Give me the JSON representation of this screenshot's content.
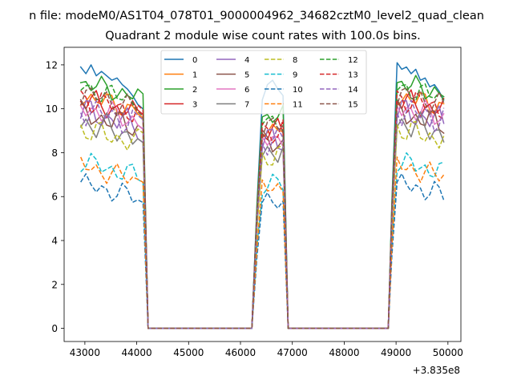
{
  "window": {
    "title_line": "n file: modeM0/AS1T04_078T01_9000004962_34682cztM0_level2_quad_clean"
  },
  "chart_data": {
    "type": "line",
    "title": "Quadrant 2 module wise count rates with 100.0s bins.",
    "xlabel": "",
    "ylabel": "",
    "xlim": [
      42600,
      50250
    ],
    "ylim": [
      -0.6,
      12.8
    ],
    "x_ticks": [
      43000,
      44000,
      45000,
      46000,
      47000,
      48000,
      49000,
      50000
    ],
    "y_ticks": [
      0,
      2,
      4,
      6,
      8,
      10,
      12
    ],
    "offset_text": "+3.835e8",
    "grid": false,
    "legend": {
      "placement": "top-center",
      "columns": 4
    },
    "segments": [
      {
        "x0": 42920,
        "x1": 44020
      },
      {
        "x0": 46420,
        "x1": 46820
      },
      {
        "x0": 48920,
        "x1": 49920
      }
    ],
    "zero_x": [
      44220,
      44320,
      44520,
      45020,
      45520,
      46020,
      46220,
      47020,
      47120,
      47520,
      48020,
      48520,
      48820
    ],
    "edges": {
      "pre1": 44120,
      "post1": 46320,
      "pre2": 46920,
      "post2": 48850
    },
    "series": [
      {
        "name": "0",
        "color": "#1f77b4",
        "dash": "solid",
        "base": 11.5,
        "amp": 0.35,
        "tier": "high",
        "values1": [
          11.9,
          11.6,
          12.0,
          11.5,
          11.7,
          11.5,
          11.3,
          11.4,
          11.1,
          10.9,
          10.6,
          10.2
        ],
        "values2": [
          10.4,
          11.1,
          11.3,
          10.9,
          10.6
        ],
        "values3": [
          12.1,
          11.8,
          11.9,
          11.6,
          11.8,
          11.3,
          11.4,
          11.0,
          11.1,
          10.8,
          10.4
        ]
      },
      {
        "name": "1",
        "color": "#ff7f0e",
        "dash": "solid",
        "base": 10.6,
        "amp": 0.35,
        "tier": "mid"
      },
      {
        "name": "2",
        "color": "#2ca02c",
        "dash": "solid",
        "base": 11.2,
        "amp": 0.35,
        "tier": "high"
      },
      {
        "name": "3",
        "color": "#d62728",
        "dash": "solid",
        "base": 10.4,
        "amp": 0.4,
        "tier": "mid"
      },
      {
        "name": "4",
        "color": "#9467bd",
        "dash": "solid",
        "base": 9.9,
        "amp": 0.45,
        "tier": "mid"
      },
      {
        "name": "5",
        "color": "#8c564b",
        "dash": "solid",
        "base": 9.8,
        "amp": 0.4,
        "tier": "mid"
      },
      {
        "name": "6",
        "color": "#e377c2",
        "dash": "solid",
        "base": 10.1,
        "amp": 0.4,
        "tier": "mid"
      },
      {
        "name": "7",
        "color": "#7f7f7f",
        "dash": "solid",
        "base": 9.4,
        "amp": 0.45,
        "tier": "mid"
      },
      {
        "name": "8",
        "color": "#bcbd22",
        "dash": "dashed",
        "base": 9.1,
        "amp": 0.4,
        "tier": "mid"
      },
      {
        "name": "9",
        "color": "#17becf",
        "dash": "dashed",
        "base": 7.6,
        "amp": 0.35,
        "tier": "low"
      },
      {
        "name": "10",
        "color": "#1f77b4",
        "dash": "dashed",
        "base": 6.6,
        "amp": 0.35,
        "tier": "vlow"
      },
      {
        "name": "11",
        "color": "#ff7f0e",
        "dash": "dashed",
        "base": 7.4,
        "amp": 0.35,
        "tier": "low"
      },
      {
        "name": "12",
        "color": "#2ca02c",
        "dash": "dashed",
        "base": 11.0,
        "amp": 0.35,
        "tier": "high"
      },
      {
        "name": "13",
        "color": "#d62728",
        "dash": "dashed",
        "base": 10.5,
        "amp": 0.4,
        "tier": "mid"
      },
      {
        "name": "14",
        "color": "#9467bd",
        "dash": "dashed",
        "base": 10.0,
        "amp": 0.45,
        "tier": "mid"
      },
      {
        "name": "15",
        "color": "#8c564b",
        "dash": "dashed",
        "base": 10.7,
        "amp": 0.4,
        "tier": "mid"
      }
    ]
  }
}
